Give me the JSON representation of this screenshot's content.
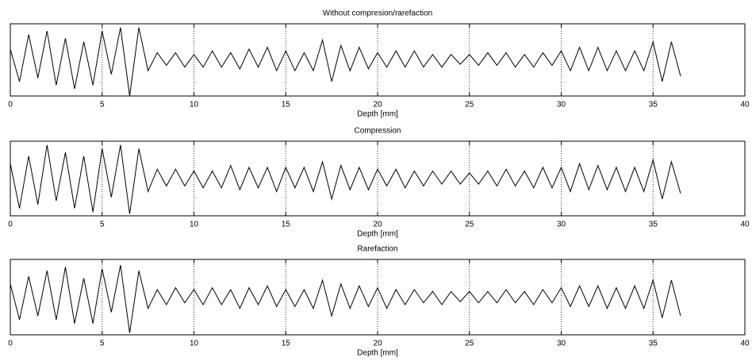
{
  "chart_data": [
    {
      "type": "line",
      "title": "Without compresion/rarefaction",
      "xlabel": "Depth [mm]",
      "color": "#000000",
      "grid": true,
      "xlim": [
        0,
        40
      ],
      "xticks": [
        0,
        5,
        10,
        15,
        20,
        25,
        30,
        35,
        40
      ],
      "ylim": [
        -1,
        1
      ],
      "x": [
        0,
        0.5,
        1,
        1.5,
        2,
        2.5,
        3,
        3.5,
        4,
        4.5,
        5,
        5.5,
        6,
        6.5,
        7,
        7.5,
        8,
        8.5,
        9,
        9.5,
        10,
        10.5,
        11,
        11.5,
        12,
        12.5,
        13,
        13.5,
        14,
        14.5,
        15,
        15.5,
        16,
        16.5,
        17,
        17.5,
        18,
        18.5,
        19,
        19.5,
        20,
        20.5,
        21,
        21.5,
        22,
        22.5,
        23,
        23.5,
        24,
        24.5,
        25,
        25.5,
        26,
        26.5,
        27,
        27.5,
        28,
        28.5,
        29,
        29.5,
        30,
        30.5,
        31,
        31.5,
        32,
        32.5,
        33,
        33.5,
        34,
        34.5,
        35,
        35.5,
        36,
        36.5
      ],
      "values": [
        0.3,
        -0.6,
        0.7,
        -0.5,
        0.8,
        -0.7,
        0.6,
        -0.8,
        0.5,
        -0.7,
        0.8,
        -0.4,
        0.9,
        -1.0,
        0.9,
        -0.3,
        0.2,
        -0.15,
        0.2,
        -0.2,
        0.15,
        -0.2,
        0.25,
        -0.2,
        0.2,
        -0.25,
        0.3,
        -0.2,
        0.35,
        -0.3,
        0.25,
        -0.3,
        0.2,
        -0.3,
        0.55,
        -0.6,
        0.4,
        -0.3,
        0.35,
        -0.25,
        0.2,
        -0.2,
        0.25,
        -0.2,
        0.25,
        -0.2,
        0.15,
        -0.2,
        0.15,
        -0.12,
        0.15,
        -0.15,
        0.2,
        -0.15,
        0.2,
        -0.2,
        0.15,
        -0.2,
        0.2,
        -0.15,
        0.25,
        -0.3,
        0.35,
        -0.3,
        0.35,
        -0.3,
        0.25,
        -0.3,
        0.25,
        -0.3,
        0.5,
        -0.6,
        0.5,
        -0.45
      ]
    },
    {
      "type": "line",
      "title": "Compression",
      "xlabel": "Depth [mm]",
      "color": "#000000",
      "grid": true,
      "xlim": [
        0,
        40
      ],
      "xticks": [
        0,
        5,
        10,
        15,
        20,
        25,
        30,
        35,
        40
      ],
      "ylim": [
        -1,
        1
      ],
      "x": [
        0,
        0.5,
        1,
        1.5,
        2,
        2.5,
        3,
        3.5,
        4,
        4.5,
        5,
        5.5,
        6,
        6.5,
        7,
        7.5,
        8,
        8.5,
        9,
        9.5,
        10,
        10.5,
        11,
        11.5,
        12,
        12.5,
        13,
        13.5,
        14,
        14.5,
        15,
        15.5,
        16,
        16.5,
        17,
        17.5,
        18,
        18.5,
        19,
        19.5,
        20,
        20.5,
        21,
        21.5,
        22,
        22.5,
        23,
        23.5,
        24,
        24.5,
        25,
        25.5,
        26,
        26.5,
        27,
        27.5,
        28,
        28.5,
        29,
        29.5,
        30,
        30.5,
        31,
        31.5,
        32,
        32.5,
        33,
        33.5,
        34,
        34.5,
        35,
        35.5,
        36,
        36.5
      ],
      "values": [
        0.4,
        -0.8,
        0.6,
        -0.7,
        0.9,
        -0.6,
        0.7,
        -0.8,
        0.6,
        -0.9,
        0.8,
        -0.5,
        0.9,
        -0.95,
        0.8,
        -0.35,
        0.25,
        -0.2,
        0.25,
        -0.2,
        0.2,
        -0.25,
        0.2,
        -0.25,
        0.35,
        -0.3,
        0.3,
        -0.25,
        0.3,
        -0.35,
        0.3,
        -0.25,
        0.3,
        -0.35,
        0.45,
        -0.55,
        0.35,
        -0.3,
        0.3,
        -0.3,
        0.25,
        -0.2,
        0.25,
        -0.25,
        0.2,
        -0.2,
        0.2,
        -0.15,
        0.2,
        -0.15,
        0.15,
        -0.15,
        0.2,
        -0.2,
        0.25,
        -0.2,
        0.2,
        -0.25,
        0.3,
        -0.25,
        0.3,
        -0.35,
        0.4,
        -0.3,
        0.35,
        -0.3,
        0.3,
        -0.35,
        0.3,
        -0.35,
        0.5,
        -0.55,
        0.45,
        -0.4
      ]
    },
    {
      "type": "line",
      "title": "Rarefaction",
      "xlabel": "Depth [mm]",
      "color": "#000000",
      "grid": true,
      "xlim": [
        0,
        40
      ],
      "xticks": [
        0,
        5,
        10,
        15,
        20,
        25,
        30,
        35,
        40
      ],
      "ylim": [
        -1,
        1
      ],
      "x": [
        0,
        0.5,
        1,
        1.5,
        2,
        2.5,
        3,
        3.5,
        4,
        4.5,
        5,
        5.5,
        6,
        6.5,
        7,
        7.5,
        8,
        8.5,
        9,
        9.5,
        10,
        10.5,
        11,
        11.5,
        12,
        12.5,
        13,
        13.5,
        14,
        14.5,
        15,
        15.5,
        16,
        16.5,
        17,
        17.5,
        18,
        18.5,
        19,
        19.5,
        20,
        20.5,
        21,
        21.5,
        22,
        22.5,
        23,
        23.5,
        24,
        24.5,
        25,
        25.5,
        26,
        26.5,
        27,
        27.5,
        28,
        28.5,
        29,
        29.5,
        30,
        30.5,
        31,
        31.5,
        32,
        32.5,
        33,
        33.5,
        34,
        34.5,
        35,
        35.5,
        36,
        36.5
      ],
      "values": [
        0.35,
        -0.6,
        0.55,
        -0.5,
        0.7,
        -0.6,
        0.8,
        -0.7,
        0.5,
        -0.7,
        0.75,
        -0.4,
        0.85,
        -0.95,
        0.7,
        -0.3,
        0.2,
        -0.2,
        0.25,
        -0.15,
        0.2,
        -0.2,
        0.25,
        -0.2,
        0.2,
        -0.3,
        0.25,
        -0.2,
        0.3,
        -0.25,
        0.2,
        -0.25,
        0.2,
        -0.3,
        0.45,
        -0.5,
        0.35,
        -0.3,
        0.3,
        -0.25,
        0.25,
        -0.3,
        0.2,
        -0.2,
        0.2,
        -0.15,
        0.15,
        -0.2,
        0.15,
        -0.12,
        0.15,
        -0.15,
        0.15,
        -0.15,
        0.2,
        -0.15,
        0.15,
        -0.2,
        0.2,
        -0.15,
        0.25,
        -0.25,
        0.3,
        -0.25,
        0.3,
        -0.3,
        0.25,
        -0.3,
        0.3,
        -0.3,
        0.45,
        -0.55,
        0.45,
        -0.5
      ]
    }
  ]
}
